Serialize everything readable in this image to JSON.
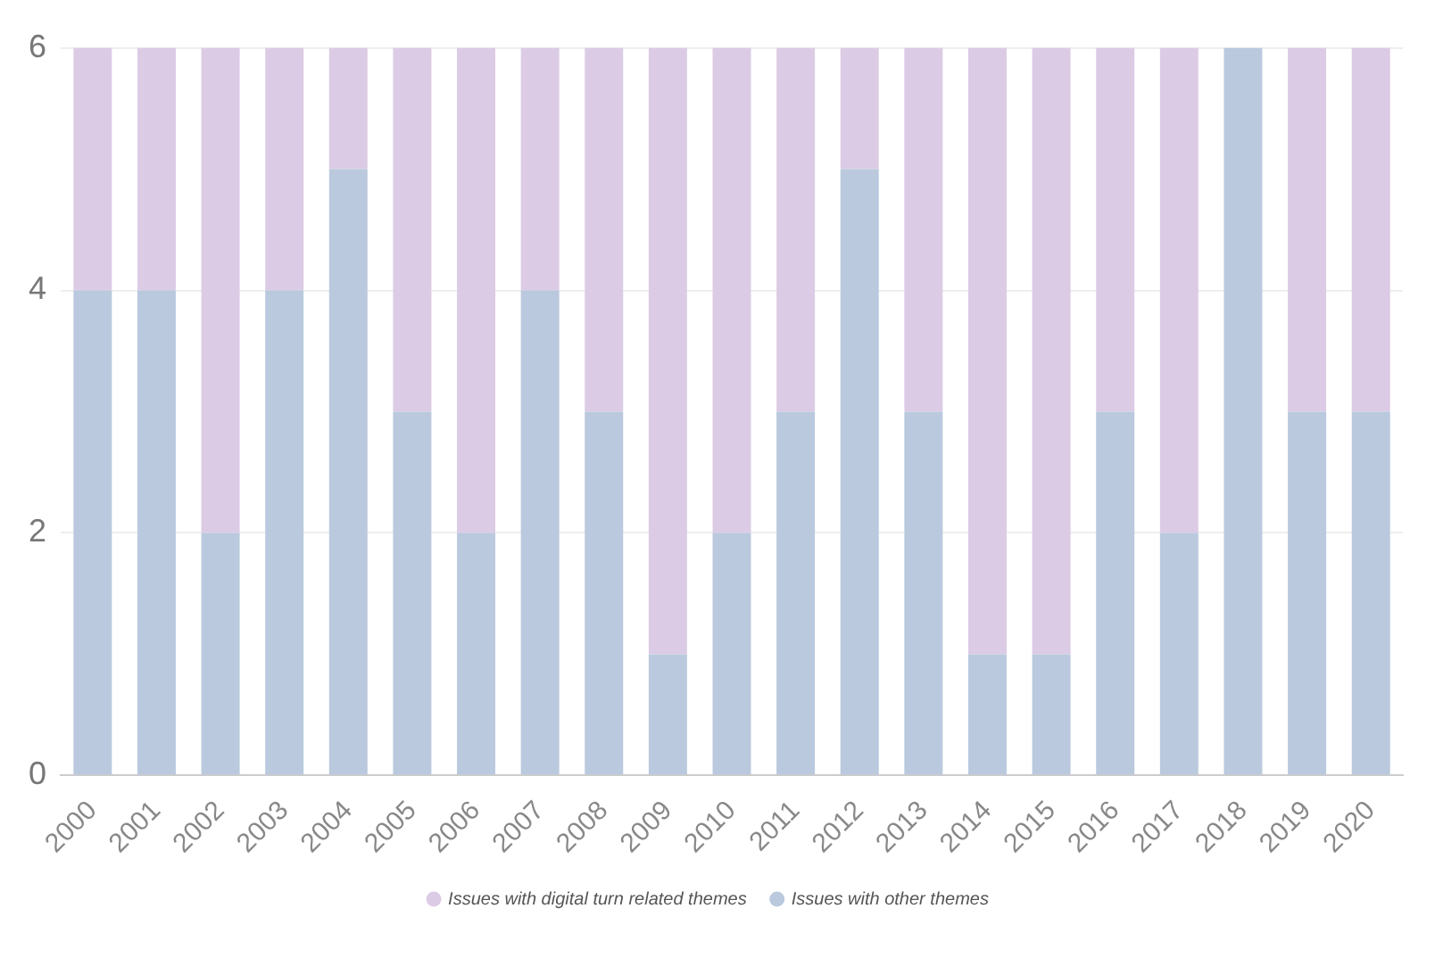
{
  "chart_data": {
    "type": "bar",
    "stacked": true,
    "categories": [
      "2000",
      "2001",
      "2002",
      "2003",
      "2004",
      "2005",
      "2006",
      "2007",
      "2008",
      "2009",
      "2010",
      "2011",
      "2012",
      "2013",
      "2014",
      "2015",
      "2016",
      "2017",
      "2018",
      "2019",
      "2020"
    ],
    "series": [
      {
        "name": "Issues with other themes",
        "color": "#bac9dd",
        "values": [
          4,
          4,
          2,
          4,
          5,
          3,
          2,
          4,
          3,
          1,
          2,
          3,
          5,
          3,
          1,
          1,
          3,
          2,
          6,
          3,
          3
        ]
      },
      {
        "name": "Issues with digital turn related themes",
        "color": "#dccbe5",
        "values": [
          2,
          2,
          4,
          2,
          1,
          3,
          4,
          2,
          3,
          5,
          4,
          3,
          1,
          3,
          5,
          5,
          3,
          4,
          0,
          3,
          3
        ]
      }
    ],
    "ylim": [
      0,
      6
    ],
    "yticks": [
      0,
      2,
      4,
      6
    ],
    "grid": "y",
    "legend": "bottom"
  }
}
